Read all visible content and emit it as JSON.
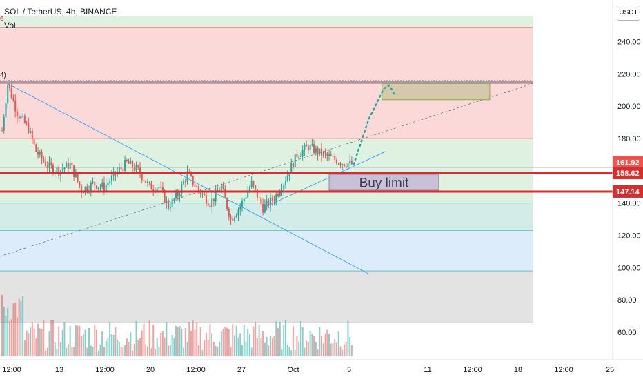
{
  "header": {
    "symbol_line": "SOL / TetherUS, 4h, BINANCE",
    "volume_label": "Vol",
    "edge_label_red": "6",
    "edge_label_dark": "4)",
    "currency_button": "USDT"
  },
  "colors": {
    "up": "#26a69a",
    "down": "#ef5350",
    "red_zone": "#fcd9d9",
    "green_zone": "#dff2e1",
    "teal_zone": "#d3ece8",
    "blue_zone": "#dcecfb",
    "gray_zone": "#e3e3e3",
    "level_line": "#d32f2f",
    "trend_line": "#42a5f5",
    "dotted_projection": "#26a69a"
  },
  "chart_data": {
    "type": "candlestick",
    "y_axis": {
      "ticks": [
        "240.00",
        "220.00",
        "200.00",
        "180.00",
        "140.00",
        "120.00",
        "100.00",
        "80.00",
        "60.00"
      ],
      "tick_values": [
        240,
        220,
        200,
        180,
        140,
        120,
        100,
        80,
        60
      ],
      "range": [
        44,
        256
      ]
    },
    "x_axis": {
      "ticks": [
        "12:00",
        "13",
        "12:00",
        "20",
        "12:00",
        "27",
        "Oct",
        "5",
        "11",
        "12:00",
        "18",
        "12:00",
        "25"
      ]
    },
    "price_labels": [
      {
        "text": "161.92",
        "value": 161.92
      },
      {
        "text": "158.62",
        "value": 158.62
      },
      {
        "text": "147.14",
        "value": 147.14
      }
    ],
    "levels": [
      {
        "value": 158.62
      },
      {
        "value": 147.14
      }
    ],
    "zones": [
      {
        "role": "green_zone",
        "from": 249,
        "to": 256
      },
      {
        "role": "red_zone",
        "from": 214,
        "to": 249
      },
      {
        "role": "red_zone",
        "from": 180,
        "to": 214
      },
      {
        "role": "green_zone",
        "from": 140,
        "to": 180
      },
      {
        "role": "teal_zone",
        "from": 123,
        "to": 140
      },
      {
        "role": "blue_zone",
        "from": 98,
        "to": 123
      },
      {
        "role": "gray_zone",
        "from": 66,
        "to": 98
      }
    ],
    "annotation": {
      "text": "Buy limit",
      "from": 147.14,
      "to": 158.62
    },
    "target_box": {
      "from": 204,
      "to": 214
    },
    "path_anchors": [
      [
        0,
        185
      ],
      [
        3,
        214
      ],
      [
        8,
        196
      ],
      [
        14,
        186
      ],
      [
        18,
        172
      ],
      [
        24,
        163
      ],
      [
        30,
        160
      ],
      [
        36,
        164
      ],
      [
        42,
        148
      ],
      [
        48,
        152
      ],
      [
        54,
        150
      ],
      [
        60,
        158
      ],
      [
        66,
        165
      ],
      [
        72,
        160
      ],
      [
        78,
        150
      ],
      [
        83,
        150
      ],
      [
        88,
        138
      ],
      [
        93,
        145
      ],
      [
        98,
        158
      ],
      [
        104,
        148
      ],
      [
        110,
        140
      ],
      [
        116,
        150
      ],
      [
        121,
        130
      ],
      [
        126,
        138
      ],
      [
        132,
        152
      ],
      [
        138,
        137
      ],
      [
        144,
        143
      ],
      [
        150,
        155
      ],
      [
        156,
        170
      ],
      [
        162,
        175
      ],
      [
        168,
        171
      ],
      [
        174,
        168
      ],
      [
        180,
        165
      ],
      [
        186,
        164
      ]
    ],
    "projection": [
      [
        186,
        164
      ],
      [
        194,
        192
      ],
      [
        202,
        211
      ],
      [
        205,
        213
      ],
      [
        208,
        206
      ]
    ]
  }
}
